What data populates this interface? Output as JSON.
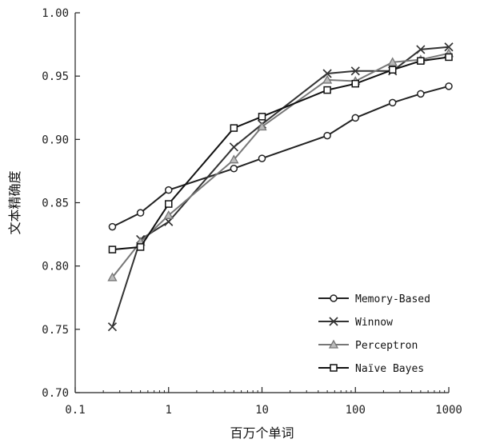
{
  "chart_data": {
    "type": "line",
    "title": "",
    "xlabel": "百万个单词",
    "ylabel": "文本精确度",
    "x_scale": "log",
    "xlim": [
      0.1,
      1000
    ],
    "ylim": [
      0.7,
      1.0
    ],
    "x_ticks": [
      0.1,
      1,
      10,
      100,
      1000
    ],
    "x_tick_labels": [
      "0.1",
      "1",
      "10",
      "100",
      "1000"
    ],
    "y_ticks": [
      0.7,
      0.75,
      0.8,
      0.85,
      0.9,
      0.95,
      1.0
    ],
    "y_tick_labels": [
      "0.70",
      "0.75",
      "0.80",
      "0.85",
      "0.90",
      "0.95",
      "1.00"
    ],
    "grid": false,
    "legend_position": "bottom-right",
    "x": [
      0.25,
      0.5,
      1,
      5,
      10,
      50,
      100,
      250,
      500,
      1000
    ],
    "series": [
      {
        "name": "Memory-Based",
        "marker": "circle",
        "color": "#222222",
        "values": [
          0.831,
          0.842,
          0.86,
          0.877,
          0.885,
          0.903,
          0.917,
          0.929,
          0.936,
          0.942
        ]
      },
      {
        "name": "Winnow",
        "marker": "x",
        "color": "#333333",
        "values": [
          0.752,
          0.821,
          0.835,
          0.894,
          0.912,
          0.952,
          0.954,
          0.954,
          0.971,
          0.973
        ]
      },
      {
        "name": "Perceptron",
        "marker": "triangle",
        "color": "#777777",
        "values": [
          0.791,
          0.819,
          0.84,
          0.884,
          0.91,
          0.947,
          0.946,
          0.961,
          0.963,
          0.968
        ]
      },
      {
        "name": "Naïve Bayes",
        "marker": "square",
        "color": "#111111",
        "values": [
          0.813,
          0.815,
          0.849,
          0.909,
          0.918,
          0.939,
          0.944,
          0.955,
          0.962,
          0.965
        ]
      }
    ]
  }
}
